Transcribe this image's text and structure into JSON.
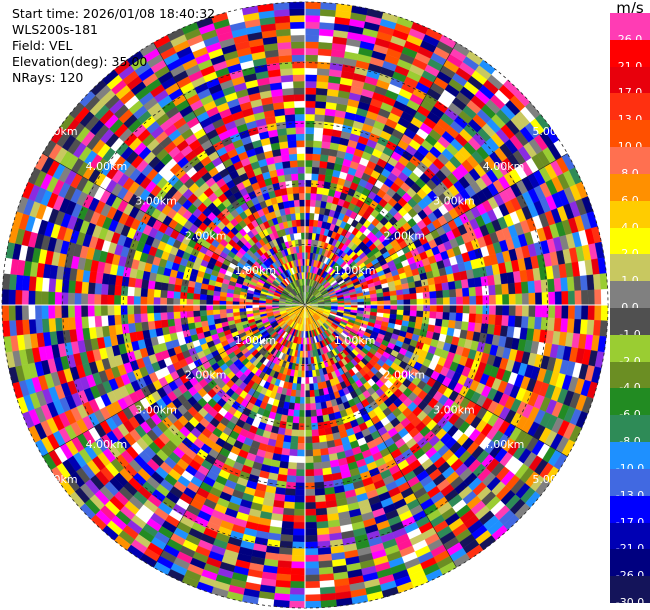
{
  "header": {
    "start_time": "Start time: 2026/01/08 18:40:32",
    "station": "WLS200s-181",
    "field": "Field: VEL",
    "elevation": "Elevation(deg): 35.00",
    "nrays": "NRays: 120"
  },
  "colorbar": {
    "unit": "m/s",
    "levels": [
      {
        "label": "26.0",
        "color": "#ff3cb4"
      },
      {
        "label": "21.0",
        "color": "#ff0000"
      },
      {
        "label": "17.0",
        "color": "#e8000c"
      },
      {
        "label": "13.0",
        "color": "#ff3010"
      },
      {
        "label": "10.0",
        "color": "#ff5000"
      },
      {
        "label": "8.0",
        "color": "#ff7050"
      },
      {
        "label": "6.0",
        "color": "#ff9000"
      },
      {
        "label": "4.0",
        "color": "#ffcc00"
      },
      {
        "label": "2.0",
        "color": "#ffff00"
      },
      {
        "label": "1.0",
        "color": "#c8c860"
      },
      {
        "label": "0.0",
        "color": "#808080"
      },
      {
        "label": "-1.0",
        "color": "#505050"
      },
      {
        "label": "-2.0",
        "color": "#9acd32"
      },
      {
        "label": "-4.0",
        "color": "#6b8e23"
      },
      {
        "label": "-6.0",
        "color": "#228b22"
      },
      {
        "label": "-8.0",
        "color": "#2e8b57"
      },
      {
        "label": "-10.0",
        "color": "#1e90ff"
      },
      {
        "label": "-13.0",
        "color": "#4169e1"
      },
      {
        "label": "-17.0",
        "color": "#0000ff"
      },
      {
        "label": "-21.0",
        "color": "#0000b4"
      },
      {
        "label": "-26.0",
        "color": "#000080"
      },
      {
        "label": "-30.0",
        "color": "#14145a"
      }
    ]
  },
  "chart_data": {
    "type": "heatmap",
    "projection": "polar-ppi",
    "field": "VEL",
    "unit": "m/s",
    "nrays": 120,
    "range_rings_km": [
      1.0,
      2.0,
      3.0,
      4.0,
      5.0
    ],
    "ring_labels": [
      "1.00km",
      "2.00km",
      "3.00km",
      "4.00km",
      "5.00km"
    ],
    "max_range_km": 5.0,
    "grid": true
  }
}
